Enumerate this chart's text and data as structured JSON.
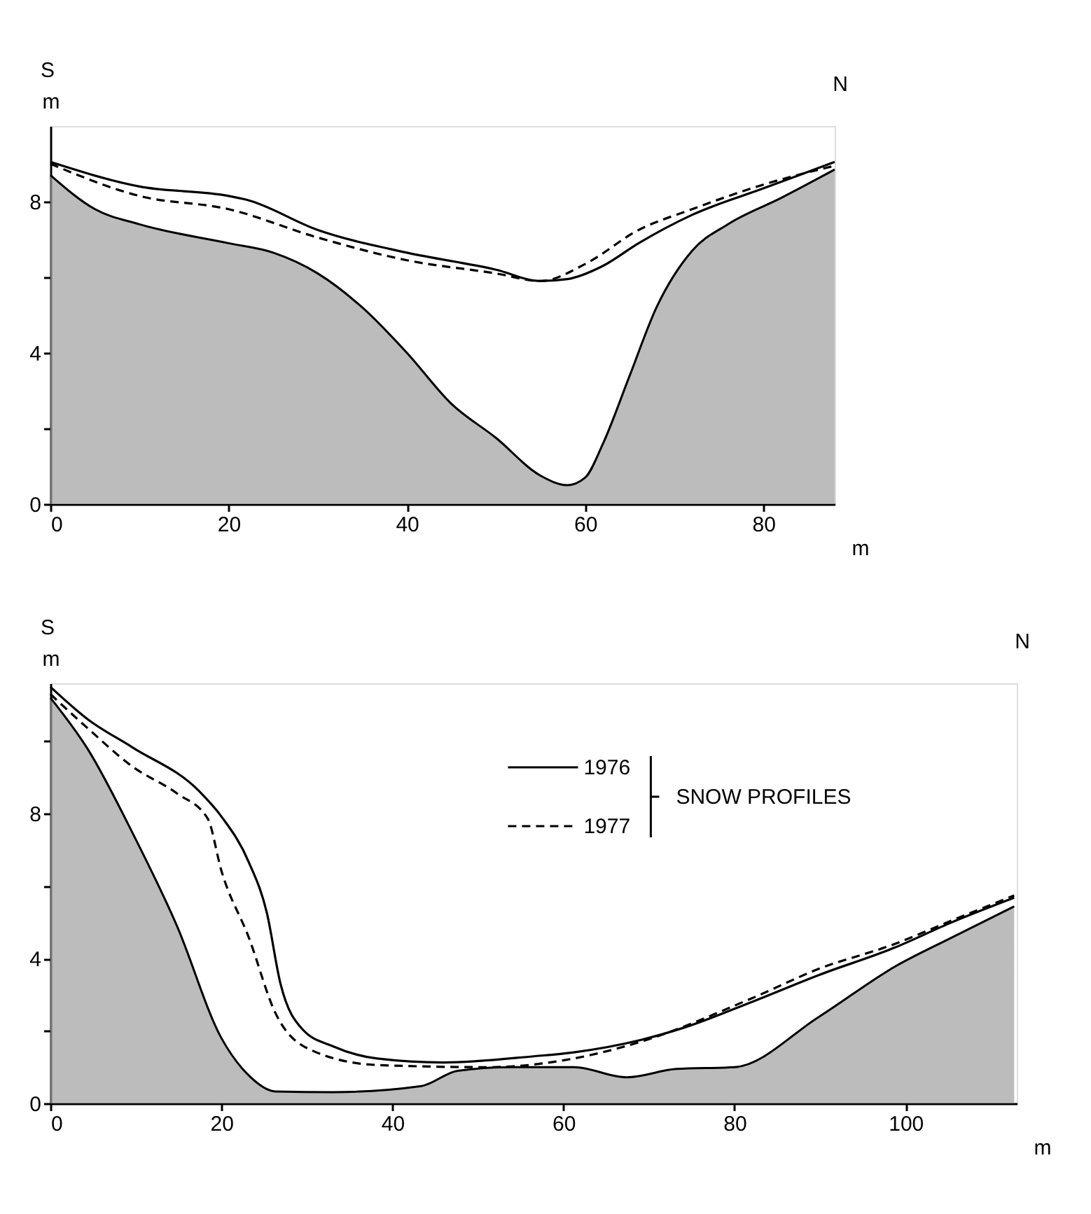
{
  "chart_data": [
    {
      "type": "line",
      "xlabel": "m",
      "ylabel": "m",
      "annotations": [
        "S",
        "N"
      ],
      "xlim": [
        0,
        88
      ],
      "xticks": [
        0,
        20,
        40,
        60,
        80
      ],
      "ylim": [
        0,
        10
      ],
      "yticks": [
        0,
        {
          "value": 2,
          "label": null
        },
        4,
        {
          "value": 6,
          "label": null
        },
        8
      ],
      "grid": false,
      "legend": false,
      "series": [
        {
          "type": "area",
          "color": "#a0a0a0",
          "x": [
            0,
            5,
            10,
            20,
            25,
            30,
            35,
            40,
            45,
            50,
            55,
            58,
            60,
            62,
            65,
            68,
            72,
            76,
            82,
            88
          ],
          "values": [
            8.7,
            7.8,
            7.4,
            6.9,
            6.65,
            6.1,
            5.2,
            4.0,
            2.65,
            1.75,
            0.75,
            0.5,
            0.7,
            1.6,
            3.4,
            5.2,
            6.7,
            7.4,
            8.1,
            8.85
          ]
        },
        {
          "color": "#000000",
          "line_style": "solid",
          "x": [
            0,
            10,
            20,
            22,
            30,
            40,
            50,
            55,
            58,
            62,
            66,
            72,
            80,
            88
          ],
          "values": [
            9.05,
            8.4,
            8.15,
            8.05,
            7.25,
            6.65,
            6.2,
            5.9,
            5.95,
            6.3,
            6.9,
            7.65,
            8.35,
            9.05
          ]
        },
        {
          "color": "#000000",
          "line_style": "dashed",
          "x": [
            0,
            10,
            20,
            30,
            40,
            50,
            55,
            60,
            66,
            72,
            80,
            88
          ],
          "values": [
            9.0,
            8.15,
            7.8,
            7.05,
            6.45,
            6.1,
            5.9,
            6.35,
            7.25,
            7.8,
            8.45,
            8.95
          ]
        }
      ]
    },
    {
      "type": "line",
      "xlabel": "m",
      "ylabel": "m",
      "annotations": [
        "S",
        "N"
      ],
      "xlim": [
        0,
        113
      ],
      "xticks": [
        0,
        20,
        40,
        60,
        80,
        100
      ],
      "ylim": [
        0,
        11.6
      ],
      "yticks": [
        0,
        {
          "value": 2,
          "label": null
        },
        4,
        {
          "value": 6,
          "label": null
        },
        8,
        {
          "value": 10,
          "label": null
        }
      ],
      "grid": false,
      "legend": "top right",
      "legend_title": "SNOW PROFILES",
      "series": [
        {
          "type": "area",
          "color": "#a0a0a0",
          "x": [
            0,
            4.4,
            9.6,
            14.8,
            20,
            23.2,
            26.3,
            33,
            43.4,
            47.6,
            53.9,
            61.2,
            67.4,
            73.2,
            80,
            89.8,
            98.7,
            105.4,
            112.7
          ],
          "values": [
            11.2,
            9.77,
            7.47,
            4.9,
            1.8,
            0.77,
            0.33,
            0.31,
            0.48,
            0.9,
            1.0,
            1.0,
            0.72,
            0.95,
            1.0,
            2.38,
            3.77,
            4.58,
            5.44
          ]
        },
        {
          "name": "1976",
          "color": "#000000",
          "line_style": "solid",
          "x": [
            0,
            4.4,
            9.6,
            17.4,
            20,
            23.2,
            25.3,
            26.9,
            29.5,
            33,
            38.2,
            46,
            56.5,
            61.2,
            69,
            74.2,
            82,
            89.8,
            98.7,
            105.4,
            112.7
          ],
          "values": [
            11.5,
            10.6,
            9.83,
            8.62,
            7.92,
            6.66,
            5.27,
            3.31,
            2.04,
            1.58,
            1.24,
            1.13,
            1.3,
            1.41,
            1.75,
            2.1,
            2.8,
            3.54,
            4.3,
            5.0,
            5.68
          ]
        },
        {
          "name": "1977",
          "color": "#000000",
          "line_style": "dashed",
          "x": [
            0,
            4.4,
            9.6,
            14.8,
            18.4,
            20,
            23.2,
            26.3,
            30.5,
            38.2,
            51.2,
            61.2,
            69,
            82,
            89.8,
            98.7,
            105.4,
            112.7
          ],
          "values": [
            11.3,
            10.35,
            9.3,
            8.56,
            7.86,
            6.42,
            4.58,
            2.5,
            1.47,
            1.06,
            1.0,
            1.24,
            1.7,
            2.9,
            3.71,
            4.4,
            5.05,
            5.74
          ]
        }
      ]
    }
  ]
}
